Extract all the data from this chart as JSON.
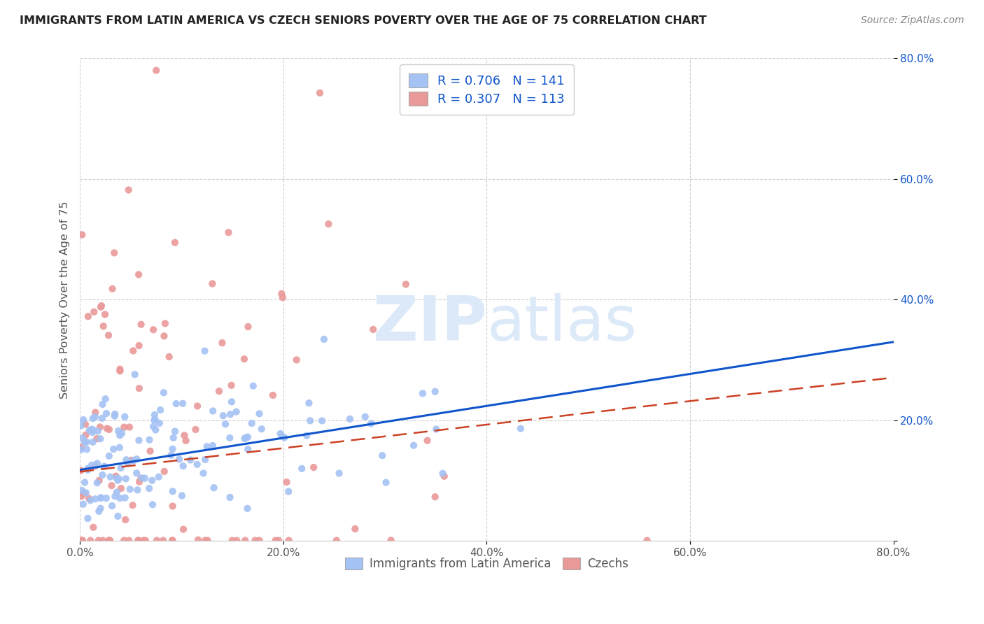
{
  "title": "IMMIGRANTS FROM LATIN AMERICA VS CZECH SENIORS POVERTY OVER THE AGE OF 75 CORRELATION CHART",
  "source": "Source: ZipAtlas.com",
  "ylabel": "Seniors Poverty Over the Age of 75",
  "legend_labels": [
    "Immigrants from Latin America",
    "Czechs"
  ],
  "legend_r": [
    "R = 0.706",
    "R = 0.307"
  ],
  "legend_n": [
    "N = 141",
    "N = 113"
  ],
  "blue_color": "#a4c2f4",
  "pink_color": "#ea9999",
  "blue_line_color": "#1155cc",
  "pink_line_color": "#cc4125",
  "tick_color_right": "#1155cc",
  "legend_text_color": "#1155cc",
  "watermark_color": "#dce9f8",
  "background_color": "#ffffff",
  "grid_color": "#d0d0d0",
  "seed": 42,
  "blue_N": 141,
  "pink_N": 113,
  "blue_R": 0.706,
  "pink_R": 0.307,
  "x_range": [
    0.0,
    0.8
  ],
  "y_range": [
    0.0,
    0.8
  ],
  "blue_slope": 0.265,
  "blue_intercept": 0.118,
  "pink_slope": 0.195,
  "pink_intercept": 0.115
}
